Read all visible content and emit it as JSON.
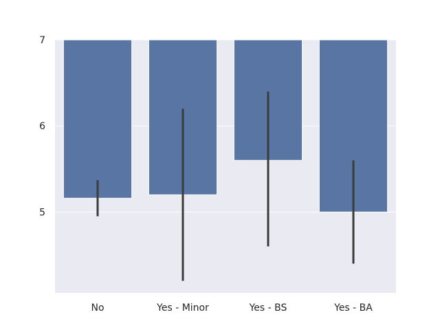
{
  "chart_data": {
    "type": "bar",
    "title": "",
    "xlabel": "",
    "ylabel": "",
    "categories": [
      "No",
      "Yes - Minor",
      "Yes - BS",
      "Yes - BA"
    ],
    "values": [
      5.16,
      5.2,
      5.6,
      5.0
    ],
    "error_low": [
      4.95,
      4.2,
      4.6,
      4.4
    ],
    "error_high": [
      5.37,
      6.2,
      6.4,
      5.6
    ],
    "ylim": [
      4.06,
      7.0
    ],
    "yticks": [
      5,
      6,
      7
    ],
    "bar_baseline": 7,
    "grid": true,
    "colors": {
      "bar": "#5875a4",
      "plot_bg": "#eaeaf2",
      "grid": "#ffffff",
      "error": "#3b3b3b"
    }
  }
}
